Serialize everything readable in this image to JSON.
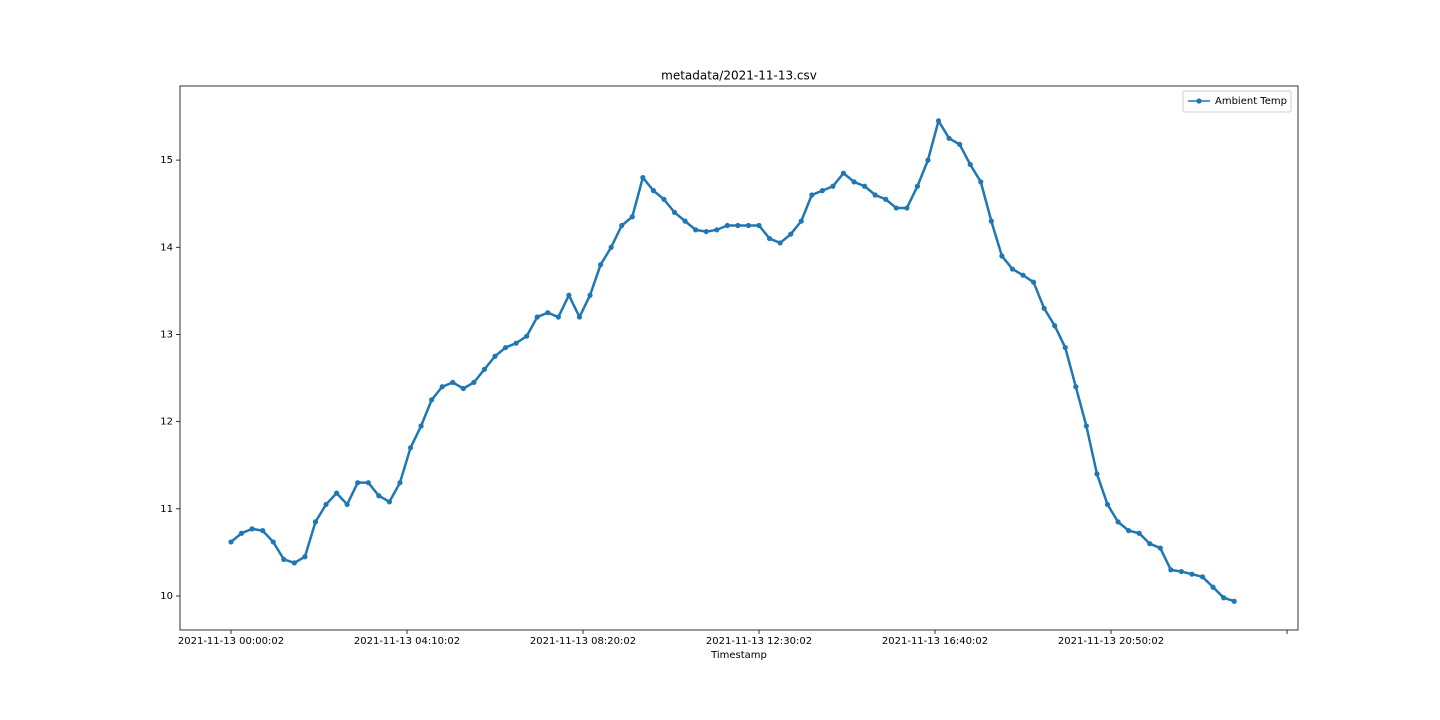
{
  "chart_data": {
    "type": "line",
    "title": "metadata/2021-11-13.csv",
    "xlabel": "Timestamp",
    "x": [
      "2021-11-13 00:00:02",
      "2021-11-13 00:15:02",
      "2021-11-13 00:30:02",
      "2021-11-13 00:45:02",
      "2021-11-13 01:00:02",
      "2021-11-13 01:15:02",
      "2021-11-13 01:30:02",
      "2021-11-13 01:45:02",
      "2021-11-13 02:00:02",
      "2021-11-13 02:15:02",
      "2021-11-13 02:30:02",
      "2021-11-13 02:45:02",
      "2021-11-13 03:00:02",
      "2021-11-13 03:15:02",
      "2021-11-13 03:30:02",
      "2021-11-13 03:45:02",
      "2021-11-13 04:00:02",
      "2021-11-13 04:15:02",
      "2021-11-13 04:30:02",
      "2021-11-13 04:45:02",
      "2021-11-13 05:00:02",
      "2021-11-13 05:15:02",
      "2021-11-13 05:30:02",
      "2021-11-13 05:45:02",
      "2021-11-13 06:00:02",
      "2021-11-13 06:15:02",
      "2021-11-13 06:30:02",
      "2021-11-13 06:45:02",
      "2021-11-13 07:00:02",
      "2021-11-13 07:15:02",
      "2021-11-13 07:30:02",
      "2021-11-13 07:45:02",
      "2021-11-13 08:00:02",
      "2021-11-13 08:15:02",
      "2021-11-13 08:30:02",
      "2021-11-13 08:45:02",
      "2021-11-13 09:00:02",
      "2021-11-13 09:15:02",
      "2021-11-13 09:30:02",
      "2021-11-13 09:45:02",
      "2021-11-13 10:00:02",
      "2021-11-13 10:15:02",
      "2021-11-13 10:30:02",
      "2021-11-13 10:45:02",
      "2021-11-13 11:00:02",
      "2021-11-13 11:15:02",
      "2021-11-13 11:30:02",
      "2021-11-13 11:45:02",
      "2021-11-13 12:00:02",
      "2021-11-13 12:15:02",
      "2021-11-13 12:30:02",
      "2021-11-13 12:45:02",
      "2021-11-13 13:00:02",
      "2021-11-13 13:15:02",
      "2021-11-13 13:30:02",
      "2021-11-13 13:45:02",
      "2021-11-13 14:00:02",
      "2021-11-13 14:15:02",
      "2021-11-13 14:30:02",
      "2021-11-13 14:45:02",
      "2021-11-13 15:00:02",
      "2021-11-13 15:15:02",
      "2021-11-13 15:30:02",
      "2021-11-13 15:45:02",
      "2021-11-13 16:00:02",
      "2021-11-13 16:15:02",
      "2021-11-13 16:30:02",
      "2021-11-13 16:45:02",
      "2021-11-13 17:00:02",
      "2021-11-13 17:15:02",
      "2021-11-13 17:30:02",
      "2021-11-13 17:45:02",
      "2021-11-13 18:00:02",
      "2021-11-13 18:15:02",
      "2021-11-13 18:30:02",
      "2021-11-13 18:45:02",
      "2021-11-13 19:00:02",
      "2021-11-13 19:15:02",
      "2021-11-13 19:30:02",
      "2021-11-13 19:45:02",
      "2021-11-13 20:00:02",
      "2021-11-13 20:15:02",
      "2021-11-13 20:30:02",
      "2021-11-13 20:45:02",
      "2021-11-13 21:00:02",
      "2021-11-13 21:15:02",
      "2021-11-13 21:30:02",
      "2021-11-13 21:45:02",
      "2021-11-13 22:00:02",
      "2021-11-13 22:15:02",
      "2021-11-13 22:30:02",
      "2021-11-13 22:45:02",
      "2021-11-13 23:00:02",
      "2021-11-13 23:15:02",
      "2021-11-13 23:30:02",
      "2021-11-13 23:45:02"
    ],
    "series": [
      {
        "name": "Ambient Temp",
        "color": "#1f77b4",
        "values": [
          10.62,
          10.72,
          10.77,
          10.75,
          10.62,
          10.42,
          10.38,
          10.45,
          10.85,
          11.05,
          11.18,
          11.05,
          11.3,
          11.3,
          11.15,
          11.08,
          11.3,
          11.7,
          11.95,
          12.25,
          12.4,
          12.45,
          12.38,
          12.45,
          12.6,
          12.75,
          12.85,
          12.9,
          12.98,
          13.2,
          13.25,
          13.2,
          13.45,
          13.2,
          13.45,
          13.8,
          14.0,
          14.25,
          14.35,
          14.8,
          14.65,
          14.55,
          14.4,
          14.3,
          14.2,
          14.18,
          14.2,
          14.25,
          14.25,
          14.25,
          14.25,
          14.1,
          14.05,
          14.15,
          14.3,
          14.6,
          14.65,
          14.7,
          14.85,
          14.75,
          14.7,
          14.6,
          14.55,
          14.45,
          14.45,
          14.7,
          15.0,
          15.45,
          15.25,
          15.18,
          14.95,
          14.75,
          14.3,
          13.9,
          13.75,
          13.68,
          13.6,
          13.3,
          13.1,
          12.85,
          12.4,
          11.95,
          11.4,
          11.05,
          10.85,
          10.75,
          10.72,
          10.6,
          10.55,
          10.3,
          10.28,
          10.25,
          10.22,
          10.1,
          9.98,
          9.94
        ]
      }
    ],
    "xlim": [
      "2021-11-12 22:47:36",
      "2021-11-14 01:15:38"
    ],
    "xticks": [
      "2021-11-13 00:00:02",
      "2021-11-13 04:10:02",
      "2021-11-13 08:20:02",
      "2021-11-13 12:30:02",
      "2021-11-13 16:40:02",
      "2021-11-13 20:50:02",
      {
        "value": "2021-11-14 01:00:02",
        "label": null
      }
    ],
    "ylim": [
      9.61,
      15.85
    ],
    "yticks": [
      10,
      11,
      12,
      13,
      14,
      15
    ],
    "grid": false,
    "legend": "upper right"
  }
}
